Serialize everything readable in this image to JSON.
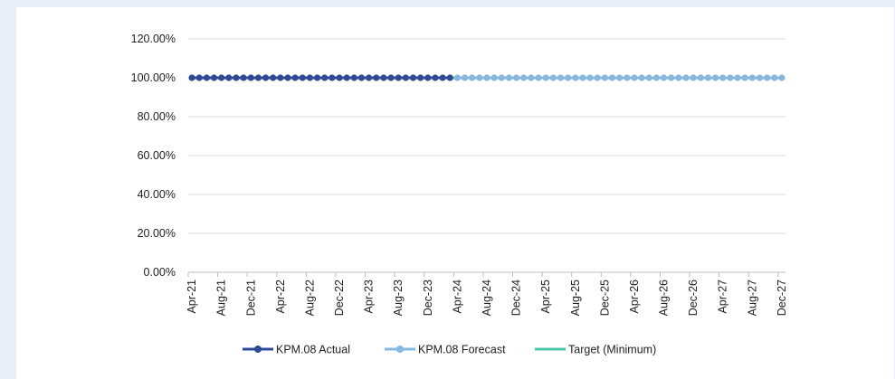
{
  "chart_data": {
    "type": "line",
    "title": "",
    "xlabel": "",
    "ylabel": "",
    "ylim": [
      0,
      1.2
    ],
    "y_ticks": [
      0,
      0.2,
      0.4,
      0.6,
      0.8,
      1.0,
      1.2
    ],
    "y_tick_labels": [
      "0.00%",
      "20.00%",
      "40.00%",
      "60.00%",
      "80.00%",
      "100.00%",
      "120.00%"
    ],
    "y_grid": true,
    "x_start": "Apr-21",
    "x_end": "Dec-27",
    "x_tick_labels": [
      "Apr-21",
      "Aug-21",
      "Dec-21",
      "Apr-22",
      "Aug-22",
      "Dec-22",
      "Apr-23",
      "Aug-23",
      "Dec-23",
      "Apr-24",
      "Aug-24",
      "Dec-24",
      "Apr-25",
      "Aug-25",
      "Dec-25",
      "Apr-26",
      "Aug-26",
      "Dec-26",
      "Apr-27",
      "Aug-27",
      "Dec-27"
    ],
    "legend_position": "bottom",
    "series": [
      {
        "name": "KPM.08 Actual",
        "color": "#2e4a94",
        "marker": "circle",
        "x_from": "Apr-21",
        "x_to": "Mar-24",
        "value": 1.0
      },
      {
        "name": "KPM.08 Forecast",
        "color": "#86b8df",
        "marker": "circle",
        "x_from": "Apr-24",
        "x_to": "Dec-27",
        "value": 1.0
      },
      {
        "name": "Target (Minimum)",
        "color": "#4dc3a4",
        "marker": "none",
        "x_from": "Apr-21",
        "x_to": "Dec-27",
        "value": 1.0
      }
    ]
  }
}
